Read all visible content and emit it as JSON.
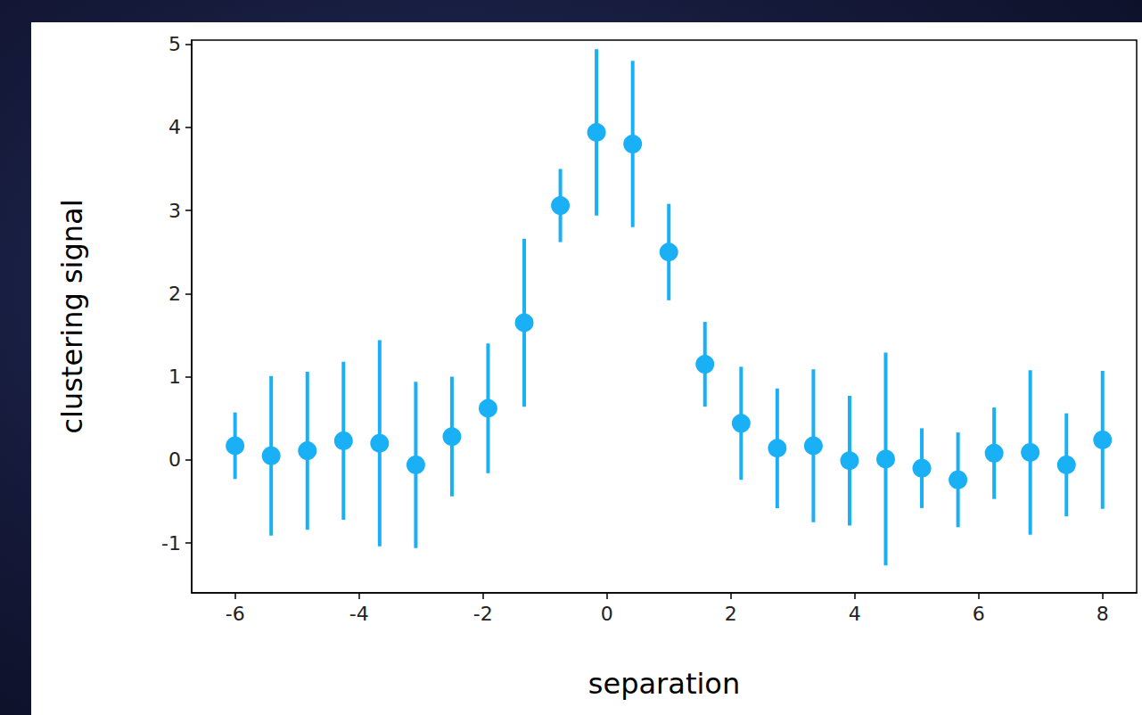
{
  "chart_data": {
    "type": "scatter",
    "xlabel": "separation",
    "ylabel": "clustering signal",
    "x": [
      -6,
      -5.417,
      -4.833,
      -4.25,
      -3.667,
      -3.083,
      -2.5,
      -1.917,
      -1.333,
      -0.75,
      -0.167,
      0.417,
      1.0,
      1.583,
      2.167,
      2.75,
      3.333,
      3.917,
      4.5,
      5.083,
      5.667,
      6.25,
      6.833,
      7.417,
      8.0
    ],
    "values": [
      0.17,
      0.05,
      0.11,
      0.23,
      0.2,
      -0.06,
      0.28,
      0.62,
      1.65,
      3.06,
      3.94,
      3.8,
      2.5,
      1.15,
      0.44,
      0.14,
      0.17,
      -0.01,
      0.01,
      -0.1,
      -0.24,
      0.08,
      0.09,
      -0.06,
      0.24
    ],
    "errors": [
      0.4,
      0.96,
      0.95,
      0.95,
      1.24,
      1.0,
      0.72,
      0.78,
      1.01,
      0.44,
      1.0,
      1.0,
      0.58,
      0.51,
      0.68,
      0.72,
      0.92,
      0.78,
      1.28,
      0.48,
      0.57,
      0.55,
      0.99,
      0.62,
      0.83
    ],
    "color": "#1ab0f6",
    "marker": "circle",
    "xlim": [
      -6.7,
      8.55
    ],
    "ylim": [
      -1.6,
      5.05
    ],
    "xticks": [
      -6,
      -4,
      -2,
      0,
      2,
      4,
      6,
      8
    ],
    "yticks": [
      -1,
      0,
      1,
      2,
      3,
      4,
      5
    ],
    "grid": false
  }
}
